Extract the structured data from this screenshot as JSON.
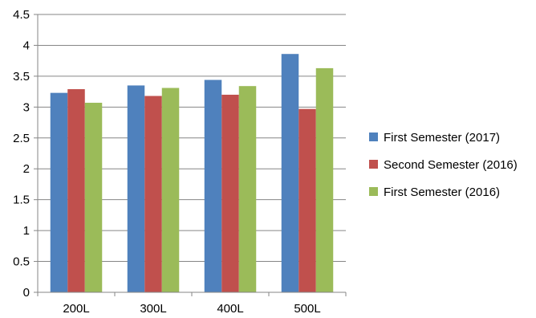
{
  "chart_data": {
    "type": "bar",
    "categories": [
      "200L",
      "300L",
      "400L",
      "500L"
    ],
    "series": [
      {
        "name": "First Semester (2017)",
        "values": [
          3.23,
          3.35,
          3.44,
          3.86
        ],
        "color": "#4F81BD"
      },
      {
        "name": "Second Semester (2016)",
        "values": [
          3.29,
          3.18,
          3.2,
          2.97
        ],
        "color": "#C0504D"
      },
      {
        "name": "First Semester (2016)",
        "values": [
          3.07,
          3.31,
          3.34,
          3.63
        ],
        "color": "#9BBB59"
      }
    ],
    "title": "",
    "xlabel": "",
    "ylabel": "",
    "ylim": [
      0,
      4.5
    ],
    "yticks": [
      "0",
      "0.5",
      "1",
      "1.5",
      "2",
      "2.5",
      "3",
      "3.5",
      "4",
      "4.5"
    ],
    "grid": true,
    "legend_position": "right"
  }
}
